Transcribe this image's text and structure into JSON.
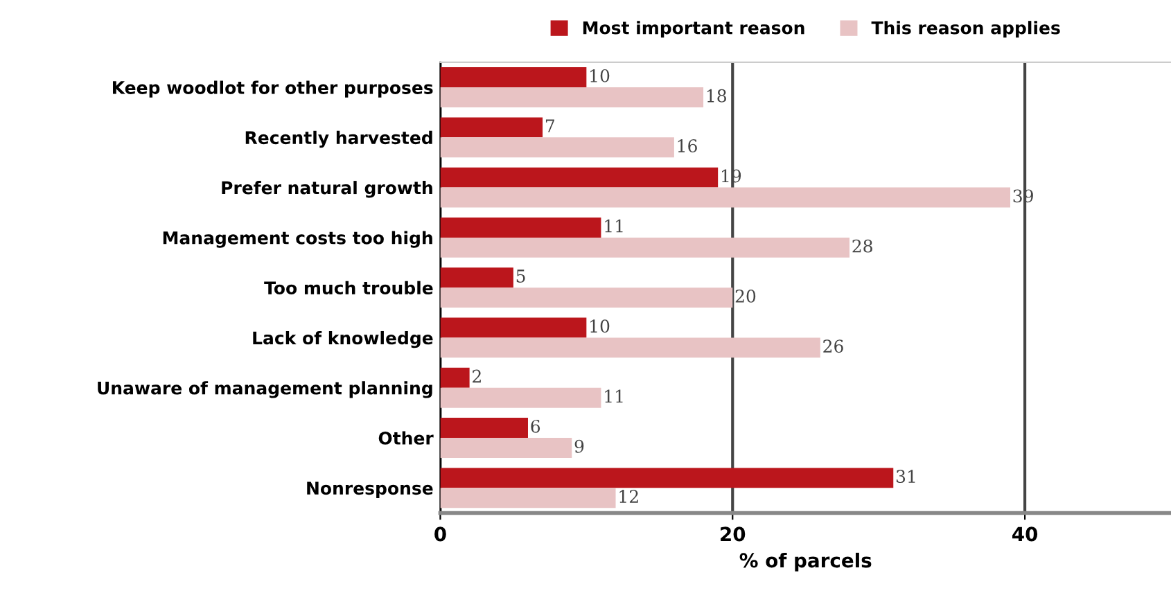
{
  "chart_data": {
    "type": "bar",
    "orientation": "horizontal",
    "xlabel": "% of parcels",
    "categories": [
      "Keep woodlot for other purposes",
      "Recently harvested",
      "Prefer natural growth",
      "Management costs too high",
      "Too much trouble",
      "Lack of knowledge",
      "Unaware of management planning",
      "Other",
      "Nonresponse"
    ],
    "series": [
      {
        "name": "Most important reason",
        "color": "#bb161c",
        "values": [
          10,
          7,
          19,
          11,
          5,
          10,
          2,
          6,
          31
        ]
      },
      {
        "name": "This reason applies",
        "color": "#e8c3c4",
        "values": [
          18,
          16,
          39,
          28,
          20,
          26,
          11,
          9,
          12
        ]
      }
    ],
    "xlim": [
      0,
      50
    ],
    "xticks": [
      0,
      20,
      40
    ],
    "grid": "x",
    "legend": "top",
    "data_labels": true
  }
}
